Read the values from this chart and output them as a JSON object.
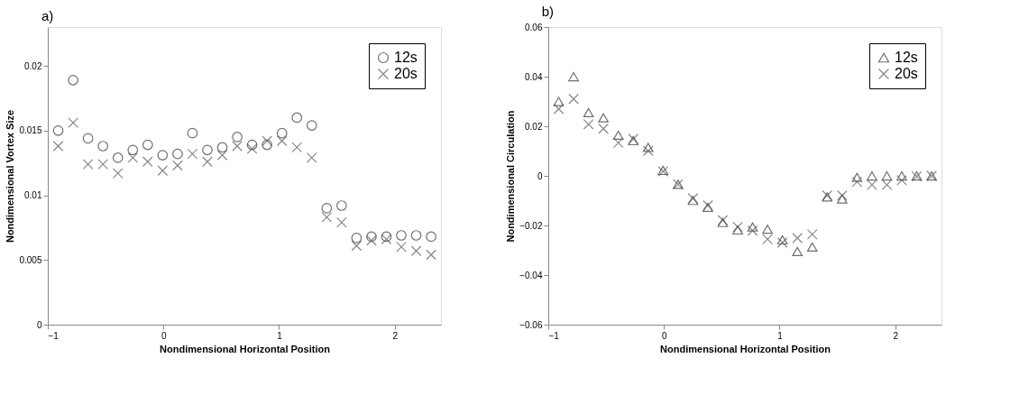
{
  "chart_data": [
    {
      "type": "scatter",
      "title": "a)",
      "xlabel": "Nondimensional Horizontal Position",
      "ylabel": "Nondimensional Vortex Size",
      "xlim": [
        -1,
        2.4
      ],
      "ylim": [
        0,
        0.023
      ],
      "xticks": [
        -1,
        0,
        1,
        2
      ],
      "yticks": [
        0,
        0.005,
        0.01,
        0.015,
        0.02
      ],
      "grid": false,
      "legend": "top right",
      "x": [
        -0.91,
        -0.781,
        -0.652,
        -0.523,
        -0.394,
        -0.265,
        -0.136,
        -0.007,
        0.122,
        0.251,
        0.38,
        0.509,
        0.638,
        0.767,
        0.896,
        1.025,
        1.154,
        1.283,
        1.412,
        1.541,
        1.67,
        1.799,
        1.928,
        2.057,
        2.186,
        2.315
      ],
      "series": [
        {
          "name": "12s",
          "color": "#333333",
          "marker": "circle",
          "values": [
            0.015,
            0.0189,
            0.0144,
            0.0138,
            0.0129,
            0.0135,
            0.0139,
            0.0131,
            0.0132,
            0.0148,
            0.0135,
            0.0137,
            0.0145,
            0.0139,
            0.0139,
            0.0148,
            0.016,
            0.0154,
            0.009,
            0.0092,
            0.0067,
            0.0068,
            0.0068,
            0.0069,
            0.0069,
            0.0068
          ]
        },
        {
          "name": "20s",
          "color": "#555555",
          "marker": "cross",
          "values": [
            0.0138,
            0.0156,
            0.0124,
            0.0124,
            0.0117,
            0.0129,
            0.0126,
            0.0119,
            0.0123,
            0.0132,
            0.0126,
            0.0131,
            0.0138,
            0.0136,
            0.0142,
            0.0142,
            0.0137,
            0.0129,
            0.0083,
            0.0079,
            0.0061,
            0.0065,
            0.0066,
            0.006,
            0.0057,
            0.0054
          ]
        }
      ]
    },
    {
      "type": "scatter",
      "title": "b)",
      "xlabel": "Nondimensional Horizontal Position",
      "ylabel": "Nondimensional Circulation",
      "xlim": [
        -1,
        2.4
      ],
      "ylim": [
        -0.06,
        0.06
      ],
      "xticks": [
        -1,
        0,
        1,
        2
      ],
      "yticks": [
        -0.06,
        -0.04,
        -0.02,
        0,
        0.02,
        0.04,
        0.06
      ],
      "grid": false,
      "legend": "top right",
      "x": [
        -0.91,
        -0.781,
        -0.652,
        -0.523,
        -0.394,
        -0.265,
        -0.136,
        -0.007,
        0.122,
        0.251,
        0.38,
        0.509,
        0.638,
        0.767,
        0.896,
        1.025,
        1.154,
        1.283,
        1.412,
        1.541,
        1.67,
        1.799,
        1.928,
        2.057,
        2.186,
        2.315
      ],
      "series": [
        {
          "name": "12s",
          "color": "#333333",
          "marker": "triangle",
          "values": [
            0.03,
            0.04,
            0.0255,
            0.0234,
            0.0164,
            0.0142,
            0.0115,
            0.0022,
            -0.0034,
            -0.0099,
            -0.0127,
            -0.0188,
            -0.0218,
            -0.0206,
            -0.0215,
            -0.0258,
            -0.0305,
            -0.0287,
            -0.0085,
            -0.0093,
            -0.0006,
            0.0,
            0.0,
            0.0,
            0.0,
            0.0
          ]
        },
        {
          "name": "20s",
          "color": "#555555",
          "marker": "cross",
          "values": [
            0.027,
            0.031,
            0.0208,
            0.019,
            0.0133,
            0.0149,
            0.0101,
            0.0018,
            -0.0034,
            -0.0091,
            -0.0119,
            -0.0179,
            -0.0206,
            -0.0221,
            -0.0255,
            -0.0269,
            -0.0251,
            -0.0236,
            -0.0079,
            -0.0079,
            -0.0024,
            -0.0036,
            -0.0036,
            -0.0018,
            -0.0002,
            0.0
          ]
        }
      ]
    }
  ]
}
